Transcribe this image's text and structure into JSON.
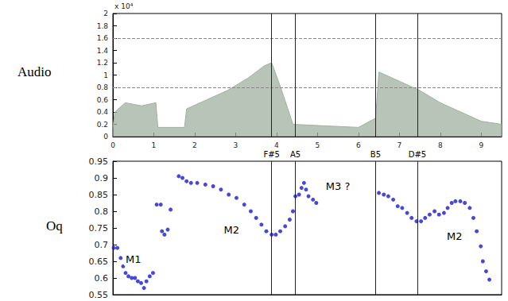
{
  "chart_data": [
    {
      "type": "area",
      "panel_label": "Audio",
      "y_multiplier": "x 10⁴",
      "x": [
        0,
        0.05,
        0.3,
        0.7,
        1.05,
        1.1,
        1.75,
        1.8,
        2.3,
        2.8,
        3.3,
        3.7,
        3.88,
        4.1,
        4.4,
        5.0,
        6.0,
        6.42,
        6.5,
        7.0,
        7.5,
        8.0,
        8.5,
        9.0,
        9.5
      ],
      "values": [
        0.15,
        0.4,
        0.55,
        0.5,
        0.55,
        0.15,
        0.15,
        0.45,
        0.6,
        0.75,
        0.95,
        1.15,
        1.2,
        0.8,
        0.2,
        0.18,
        0.15,
        0.3,
        1.05,
        0.9,
        0.75,
        0.55,
        0.4,
        0.25,
        0.2
      ],
      "color": "#9fb09f",
      "xlim": [
        0,
        9.5
      ],
      "xticks": [
        0,
        1,
        2,
        3,
        4,
        5,
        6,
        7,
        8,
        9
      ],
      "ylim": [
        0,
        2
      ],
      "yticks": [
        0,
        0.2,
        0.4,
        0.6,
        0.8,
        1,
        1.2,
        1.4,
        1.6,
        1.8,
        2
      ],
      "hlines": [
        0.8,
        1.6
      ],
      "vlines": [
        {
          "x": 3.88,
          "label": "F#5"
        },
        {
          "x": 4.46,
          "label": "A5"
        },
        {
          "x": 6.42,
          "label": "B5"
        },
        {
          "x": 7.44,
          "label": "D#5"
        }
      ],
      "grid": false
    },
    {
      "type": "scatter",
      "panel_label": "Oq",
      "x": [
        0.02,
        0.11,
        0.19,
        0.25,
        0.31,
        0.38,
        0.46,
        0.54,
        0.61,
        0.69,
        0.76,
        0.82,
        0.9,
        0.98,
        1.07,
        1.17,
        1.2,
        1.26,
        1.34,
        1.41,
        1.61,
        1.7,
        1.8,
        1.91,
        2.06,
        2.26,
        2.45,
        2.64,
        2.83,
        3.02,
        3.21,
        3.37,
        3.5,
        3.63,
        3.75,
        3.88,
        3.98,
        4.09,
        4.21,
        4.32,
        4.4,
        4.46,
        4.55,
        4.61,
        4.67,
        4.72,
        4.78,
        4.89,
        4.97,
        6.5,
        6.62,
        6.73,
        6.85,
        6.96,
        7.07,
        7.19,
        7.3,
        7.42,
        7.53,
        7.63,
        7.74,
        7.86,
        7.97,
        8.09,
        8.18,
        8.28,
        8.37,
        8.49,
        8.6,
        8.72,
        8.81,
        8.89,
        8.99,
        9.04,
        9.12,
        9.2
      ],
      "values": [
        0.69,
        0.69,
        0.66,
        0.635,
        0.615,
        0.605,
        0.6,
        0.6,
        0.59,
        0.585,
        0.57,
        0.59,
        0.605,
        0.615,
        0.82,
        0.82,
        0.74,
        0.73,
        0.745,
        0.805,
        0.905,
        0.9,
        0.89,
        0.885,
        0.885,
        0.88,
        0.875,
        0.865,
        0.85,
        0.84,
        0.82,
        0.8,
        0.78,
        0.76,
        0.74,
        0.73,
        0.73,
        0.74,
        0.755,
        0.775,
        0.8,
        0.845,
        0.85,
        0.87,
        0.885,
        0.865,
        0.845,
        0.835,
        0.825,
        0.855,
        0.85,
        0.845,
        0.835,
        0.815,
        0.81,
        0.795,
        0.78,
        0.77,
        0.77,
        0.78,
        0.79,
        0.8,
        0.79,
        0.795,
        0.81,
        0.825,
        0.83,
        0.83,
        0.825,
        0.81,
        0.78,
        0.74,
        0.695,
        0.65,
        0.62,
        0.595
      ],
      "color": "#1a1acc",
      "marker": "circle",
      "xlim": [
        0,
        9.5
      ],
      "ylim": [
        0.55,
        0.95
      ],
      "yticks": [
        0.55,
        0.6,
        0.65,
        0.7,
        0.75,
        0.8,
        0.85,
        0.9,
        0.95
      ],
      "tick_labels": "y",
      "vlines": [
        3.88,
        4.46,
        6.42,
        7.44
      ],
      "annotations": [
        {
          "text": "M1",
          "x": 0.5,
          "y": 0.655
        },
        {
          "text": "M2",
          "x": 2.9,
          "y": 0.745
        },
        {
          "text": "M3 ?",
          "x": 5.5,
          "y": 0.875
        },
        {
          "text": "M2",
          "x": 8.35,
          "y": 0.725
        }
      ],
      "grid": false
    }
  ]
}
